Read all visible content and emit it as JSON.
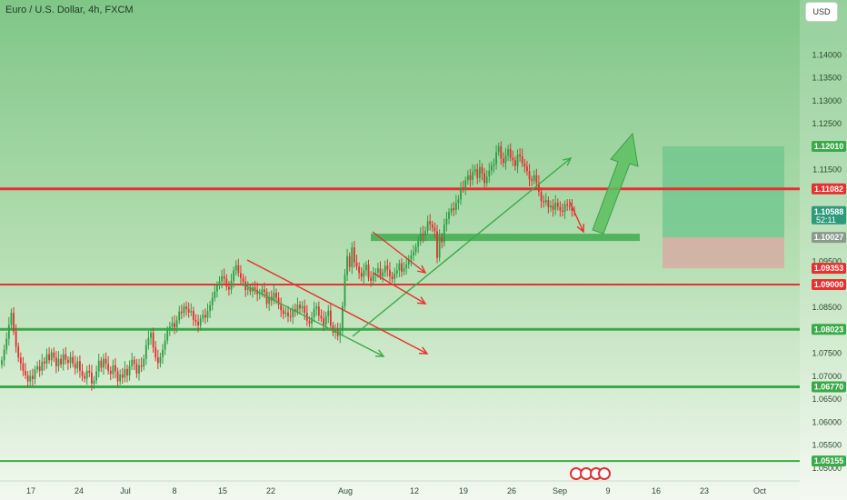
{
  "header": {
    "title": "Euro / U.S. Dollar, 4h, FXCM",
    "currency": "USD"
  },
  "colors": {
    "bg_top": "#7fc687",
    "bg_bottom": "#f0f7ee",
    "support": "#3aaa48",
    "resistance": "#e5312f",
    "bull": "#2f9e44",
    "bear": "#e03131",
    "target_zone": "#6cc68c",
    "stop_zone": "#d9a9a2",
    "label_green": "#3aaa48",
    "label_red": "#e5312f",
    "label_teal": "#2e9a7b",
    "label_gray": "#8a9a8c"
  },
  "chart_data": {
    "type": "candlestick",
    "title": "Euro / U.S. Dollar, 4h, FXCM",
    "ylim": [
      1.0488,
      1.1492
    ],
    "y_ticks": [
      "1.14000",
      "1.13500",
      "1.13000",
      "1.12500",
      "1.11500",
      "1.09500",
      "1.08500",
      "1.07500",
      "1.07000",
      "1.06500",
      "1.06000",
      "1.05500",
      "1.05000"
    ],
    "x_ticks": [
      "17",
      "24",
      "Jul",
      "8",
      "15",
      "22",
      "Aug",
      "12",
      "19",
      "26",
      "Sep",
      "9",
      "16",
      "23",
      "Oct"
    ],
    "horizontal_lines": [
      {
        "price": 1.11082,
        "label": "1.11082",
        "kind": "resistance"
      },
      {
        "price": 1.09,
        "label": "1.09000",
        "kind": "resistance"
      },
      {
        "price": 1.08023,
        "label": "1.08023",
        "kind": "support"
      },
      {
        "price": 1.0677,
        "label": "1.06770",
        "kind": "support"
      },
      {
        "price": 1.05155,
        "label": "1.05155",
        "kind": "support"
      }
    ],
    "price_labels": [
      {
        "price": 1.1201,
        "label": "1.12010",
        "kind": "green"
      },
      {
        "price": 1.10588,
        "label": "1.10588",
        "sub": "52:11",
        "kind": "teal"
      },
      {
        "price": 1.10027,
        "label": "1.10027",
        "kind": "gray"
      },
      {
        "price": 1.09353,
        "label": "1.09353",
        "kind": "red"
      }
    ],
    "position": {
      "entry": 1.10027,
      "target": 1.1201,
      "stop": 1.09353
    },
    "last_price": 1.10588,
    "countdown": "52:11",
    "candles_close": [
      1.0735,
      1.0758,
      1.0782,
      1.0812,
      1.0838,
      1.0798,
      1.0765,
      1.0741,
      1.0728,
      1.0712,
      1.0702,
      1.0689,
      1.0701,
      1.0694,
      1.0715,
      1.0722,
      1.0712,
      1.0732,
      1.0728,
      1.0748,
      1.0735,
      1.0752,
      1.0741,
      1.0722,
      1.0738,
      1.0726,
      1.0748,
      1.0736,
      1.0729,
      1.0742,
      1.0728,
      1.0717,
      1.0733,
      1.0712,
      1.0701,
      1.0695,
      1.0712,
      1.0708,
      1.0684,
      1.0691,
      1.0711,
      1.0734,
      1.0719,
      1.0738,
      1.0727,
      1.0712,
      1.0705,
      1.0724,
      1.0711,
      1.0689,
      1.0704,
      1.0697,
      1.0716,
      1.0702,
      1.0722,
      1.0736,
      1.0727,
      1.0706,
      1.0724,
      1.0721,
      1.0738,
      1.0768,
      1.0784,
      1.0795,
      1.0763,
      1.0741,
      1.0729,
      1.0742,
      1.0758,
      1.0778,
      1.0801,
      1.0808,
      1.0816,
      1.0807,
      1.0822,
      1.0841,
      1.0838,
      1.0852,
      1.0847,
      1.0839,
      1.0842,
      1.0823,
      1.0819,
      1.0811,
      1.0826,
      1.0834,
      1.0828,
      1.0842,
      1.0855,
      1.0871,
      1.0885,
      1.0899,
      1.0907,
      1.0918,
      1.0913,
      1.0895,
      1.0889,
      1.0908,
      1.0931,
      1.0942,
      1.0925,
      1.0914,
      1.0906,
      1.0888,
      1.0892,
      1.0885,
      1.0894,
      1.0888,
      1.0879,
      1.0881,
      1.0889,
      1.0884,
      1.0858,
      1.0873,
      1.0865,
      1.0882,
      1.0871,
      1.0856,
      1.0844,
      1.0836,
      1.0839,
      1.0831,
      1.0829,
      1.0846,
      1.0841,
      1.0856,
      1.0848,
      1.0853,
      1.0838,
      1.0821,
      1.0815,
      1.0828,
      1.0847,
      1.0852,
      1.0832,
      1.0826,
      1.0812,
      1.0831,
      1.0843,
      1.0811,
      1.0795,
      1.0803,
      1.0788,
      1.0799,
      1.0853,
      1.0921,
      1.0962,
      1.0938,
      1.0981,
      1.0948,
      1.0939,
      1.0925,
      1.0917,
      1.0931,
      1.0943,
      1.0915,
      1.0908,
      1.0921,
      1.0926,
      1.0935,
      1.0918,
      1.0926,
      1.0941,
      1.0932,
      1.0918,
      1.0912,
      1.0924,
      1.0931,
      1.0946,
      1.0928,
      1.0935,
      1.0944,
      1.0955,
      1.0963,
      1.0971,
      1.0982,
      1.0995,
      1.1011,
      1.1006,
      1.1017,
      1.1038,
      1.1031,
      1.1024,
      1.1016,
      1.0958,
      1.1003,
      1.0992,
      1.1031,
      1.1043,
      1.1058,
      1.1066,
      1.1062,
      1.1078,
      1.1085,
      1.1111,
      1.1108,
      1.1127,
      1.1138,
      1.1128,
      1.1145,
      1.1151,
      1.1132,
      1.1156,
      1.1142,
      1.1121,
      1.1135,
      1.1148,
      1.1159,
      1.1162,
      1.1188,
      1.1201,
      1.1174,
      1.1165,
      1.1181,
      1.1195,
      1.1176,
      1.1171,
      1.1158,
      1.1183,
      1.1179,
      1.1164,
      1.1157,
      1.1147,
      1.1129,
      1.1126,
      1.1138,
      1.1121,
      1.1102,
      1.1082,
      1.1079,
      1.1084,
      1.1068,
      1.1072,
      1.1063,
      1.1078,
      1.1069,
      1.1061,
      1.1058,
      1.1075,
      1.1072,
      1.1069,
      1.1061,
      1.10588
    ],
    "annotations": [
      {
        "shape": "arrow",
        "color": "green",
        "desc": "descending channel lower line"
      },
      {
        "shape": "arrow",
        "color": "red",
        "desc": "descending channel upper line"
      },
      {
        "shape": "arrow",
        "color": "green",
        "desc": "rising trend line"
      },
      {
        "shape": "arrow",
        "color": "red",
        "desc": "short pullback"
      },
      {
        "shape": "arrow",
        "color": "red",
        "desc": "pullback to 1.10027"
      },
      {
        "shape": "arrow",
        "color": "green",
        "desc": "projected upside move"
      },
      {
        "shape": "zone",
        "color": "green",
        "desc": "support zone at 1.10027"
      }
    ]
  }
}
